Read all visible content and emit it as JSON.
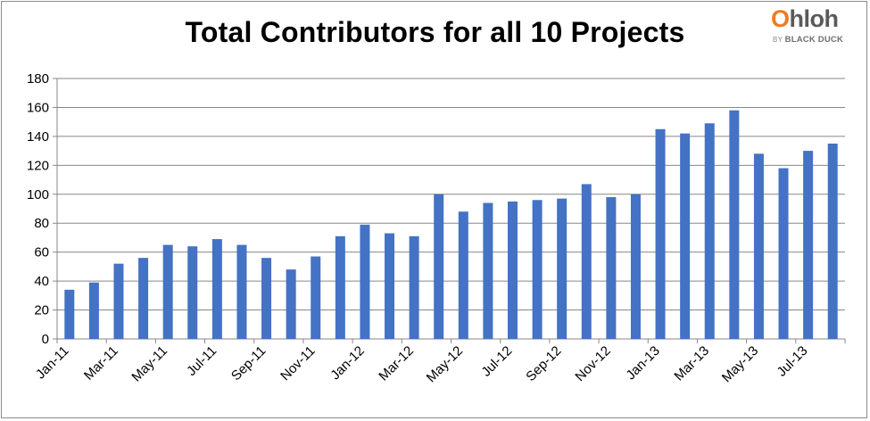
{
  "brand": {
    "logo_name": "Ohloh",
    "logo_accent": "O",
    "logo_rest": "hloh",
    "logo_by": "BY",
    "logo_sub": "BLACK DUCK",
    "accent_color": "#f07a20"
  },
  "chart_data": {
    "type": "bar",
    "title": "Total Contributors for all 10 Projects",
    "xlabel": "",
    "ylabel": "",
    "ylim": [
      0,
      180
    ],
    "yticks": [
      0,
      20,
      40,
      60,
      80,
      100,
      120,
      140,
      160,
      180
    ],
    "grid": true,
    "legend": "none",
    "bar_color": "#4472c4",
    "categories": [
      "Jan-11",
      "Feb-11",
      "Mar-11",
      "Apr-11",
      "May-11",
      "Jun-11",
      "Jul-11",
      "Aug-11",
      "Sep-11",
      "Oct-11",
      "Nov-11",
      "Dec-11",
      "Jan-12",
      "Feb-12",
      "Mar-12",
      "Apr-12",
      "May-12",
      "Jun-12",
      "Jul-12",
      "Aug-12",
      "Sep-12",
      "Oct-12",
      "Nov-12",
      "Dec-12",
      "Jan-13",
      "Feb-13",
      "Mar-13",
      "Apr-13",
      "May-13",
      "Jun-13",
      "Jul-13",
      "Aug-13"
    ],
    "x_tick_labels": [
      "Jan-11",
      "Mar-11",
      "May-11",
      "Jul-11",
      "Sep-11",
      "Nov-11",
      "Jan-12",
      "Mar-12",
      "May-12",
      "Jul-12",
      "Sep-12",
      "Nov-12",
      "Jan-13",
      "Mar-13",
      "May-13",
      "Jul-13"
    ],
    "values": [
      34,
      39,
      52,
      56,
      65,
      64,
      69,
      65,
      56,
      48,
      57,
      71,
      79,
      73,
      71,
      100,
      88,
      94,
      95,
      96,
      97,
      107,
      98,
      100,
      145,
      142,
      149,
      158,
      128,
      118,
      130,
      135
    ]
  }
}
